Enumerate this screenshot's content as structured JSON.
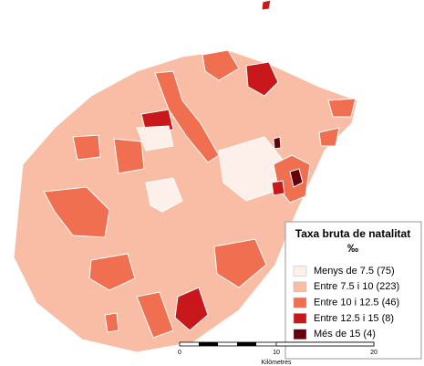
{
  "legend": {
    "title": "Taxa bruta de natalitat",
    "unit": "‰",
    "items": [
      {
        "label": "Menys de 7.5 (75)",
        "color": "#fdf0ea"
      },
      {
        "label": "Entre 7.5  i 10 (223)",
        "color": "#f9bca4"
      },
      {
        "label": "Entre 10 i 12.5 (46)",
        "color": "#ef6f50"
      },
      {
        "label": "Entre 12.5 i 15 (8)",
        "color": "#c8181c"
      },
      {
        "label": "Més de 15 (4)",
        "color": "#67000d"
      }
    ]
  },
  "scale_bar": {
    "ticks": [
      "0",
      "10",
      "20"
    ],
    "unit": "Kilòmetres"
  }
}
